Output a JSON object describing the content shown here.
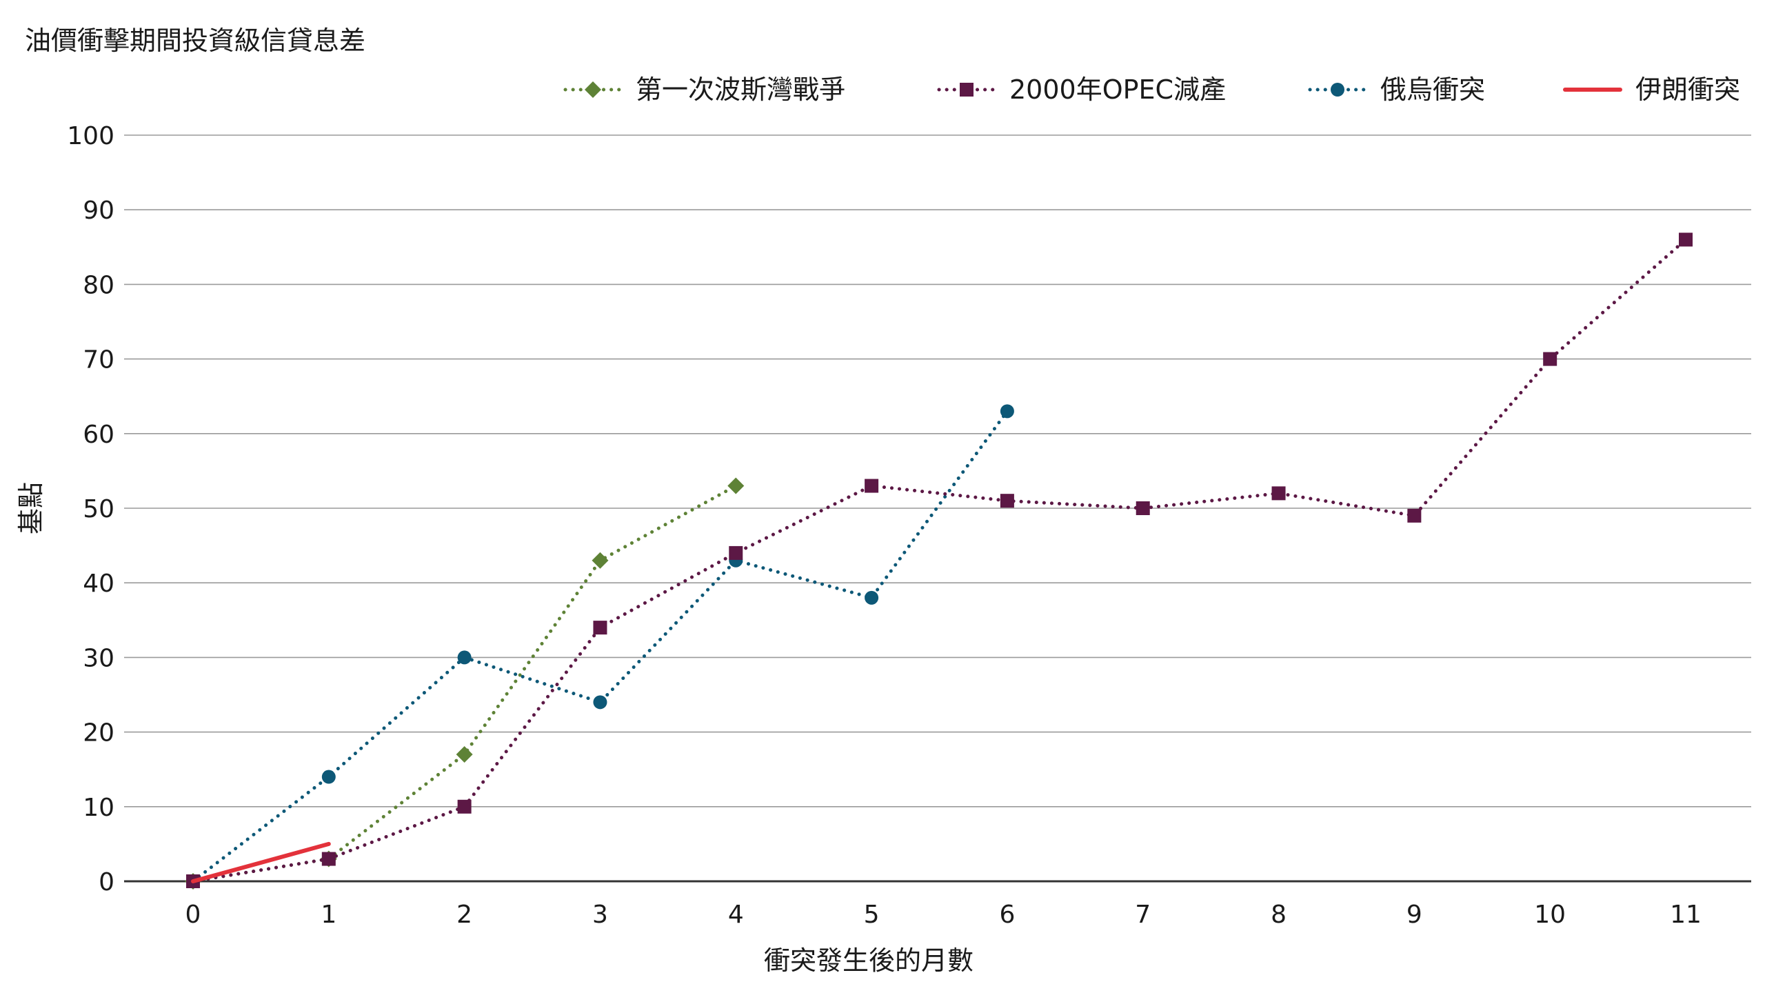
{
  "chart_data": {
    "type": "line",
    "title": "油價衝擊期間投資級信貸息差",
    "xlabel": "衝突發生後的月數",
    "ylabel": "基點",
    "x": [
      0,
      1,
      2,
      3,
      4,
      5,
      6,
      7,
      8,
      9,
      10,
      11
    ],
    "xlim": [
      0,
      11
    ],
    "ylim": [
      0,
      100
    ],
    "yticks": [
      0,
      10,
      20,
      30,
      40,
      50,
      60,
      70,
      80,
      90,
      100
    ],
    "grid": true,
    "legend_position": "top-right",
    "series": [
      {
        "name": "第一次波斯灣戰爭",
        "color": "#5e8236",
        "line_style": "dotted",
        "marker": "diamond",
        "x": [
          0,
          1,
          2,
          3,
          4
        ],
        "values": [
          0,
          3,
          17,
          43,
          53
        ]
      },
      {
        "name": "2000年OPEC減產",
        "color": "#5c1845",
        "line_style": "dotted",
        "marker": "square",
        "x": [
          0,
          1,
          2,
          3,
          4,
          5,
          6,
          7,
          8,
          9,
          10,
          11
        ],
        "values": [
          0,
          3,
          10,
          34,
          44,
          53,
          51,
          50,
          52,
          49,
          70,
          86
        ]
      },
      {
        "name": "俄烏衝突",
        "color": "#0d5877",
        "line_style": "dotted",
        "marker": "circle",
        "x": [
          0,
          1,
          2,
          3,
          4,
          5,
          6
        ],
        "values": [
          0,
          14,
          30,
          24,
          43,
          38,
          63
        ]
      },
      {
        "name": "伊朗衝突",
        "color": "#e3323b",
        "line_style": "solid",
        "marker": "none",
        "x": [
          0,
          1
        ],
        "values": [
          0,
          5
        ]
      }
    ]
  }
}
